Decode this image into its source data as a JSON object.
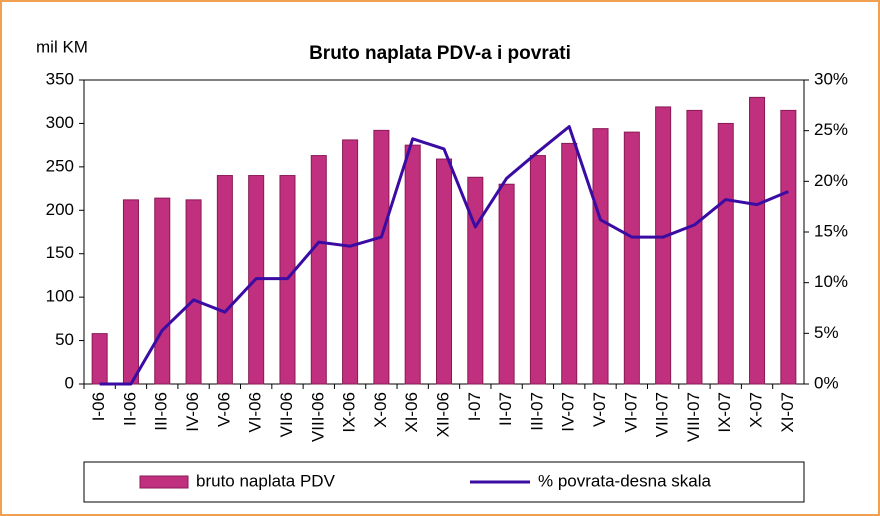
{
  "chart_data": {
    "type": "bar-line",
    "title": "Bruto naplata PDV-a i povrati",
    "y_label": "mil KM",
    "categories": [
      "I-06",
      "II-06",
      "III-06",
      "IV-06",
      "V-06",
      "VI-06",
      "VII-06",
      "VIII-06",
      "IX-06",
      "X-06",
      "XI-06",
      "XII-06",
      "I-07",
      "II-07",
      "III-07",
      "IV-07",
      "V-07",
      "VI-07",
      "VII-07",
      "VIII-07",
      "IX-07",
      "X-07",
      "XI-07"
    ],
    "series": [
      {
        "name": "bruto naplata PDV",
        "type": "bar",
        "color": "#c0307e",
        "values": [
          58,
          212,
          214,
          212,
          240,
          240,
          240,
          263,
          281,
          292,
          275,
          259,
          238,
          230,
          263,
          277,
          294,
          290,
          319,
          315,
          300,
          330,
          315
        ]
      },
      {
        "name": "% povrata-desna skala",
        "type": "line",
        "axis": "y2",
        "color": "#3a0ca3",
        "values": [
          0,
          0,
          5.3,
          8.3,
          7.1,
          10.4,
          10.4,
          14.0,
          13.6,
          14.5,
          24.2,
          23.2,
          15.5,
          20.3,
          22.9,
          25.4,
          16.2,
          14.5,
          14.5,
          15.7,
          18.2,
          17.7,
          19.0
        ]
      }
    ],
    "ylim": [
      0,
      350
    ],
    "yticks": [
      0,
      50,
      100,
      150,
      200,
      250,
      300,
      350
    ],
    "y2lim": [
      0,
      30
    ],
    "y2ticks": [
      {
        "value": 0,
        "label": "0%"
      },
      {
        "value": 5,
        "label": "5%"
      },
      {
        "value": 10,
        "label": "10%"
      },
      {
        "value": 15,
        "label": "15%"
      },
      {
        "value": 20,
        "label": "20%"
      },
      {
        "value": 25,
        "label": "25%"
      },
      {
        "value": 30,
        "label": "30%"
      }
    ],
    "legend": "bottom"
  }
}
